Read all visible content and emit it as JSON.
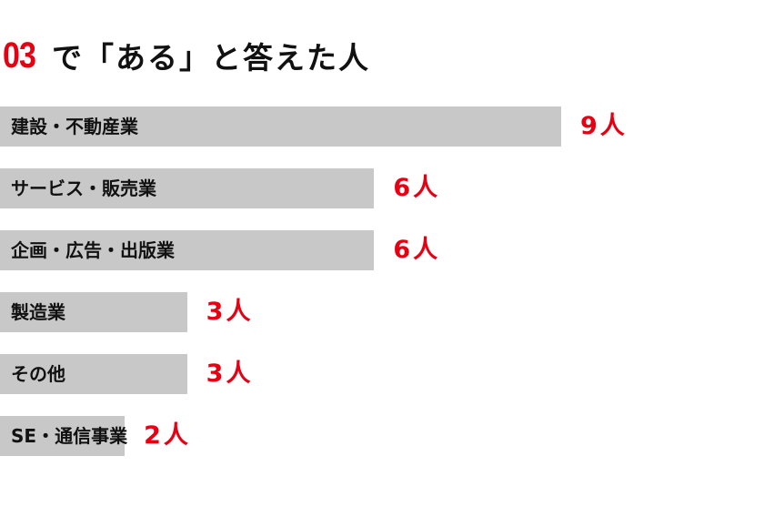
{
  "chart_data": {
    "type": "bar",
    "orientation": "horizontal",
    "title_number": "03",
    "title": "で「ある」と答えた人",
    "categories": [
      "建設・不動産業",
      "サービス・販売業",
      "企画・広告・出版業",
      "製造業",
      "その他",
      "SE・通信事業"
    ],
    "values": [
      9,
      6,
      6,
      3,
      3,
      2
    ],
    "value_labels": [
      "9人",
      "6人",
      "6人",
      "3人",
      "3人",
      "2人"
    ],
    "xlim": [
      0,
      12
    ],
    "grid": false,
    "colors": {
      "bar": "#c8c8c8",
      "value": "#e60012",
      "title_number": "#e60012",
      "text": "#111111"
    }
  }
}
